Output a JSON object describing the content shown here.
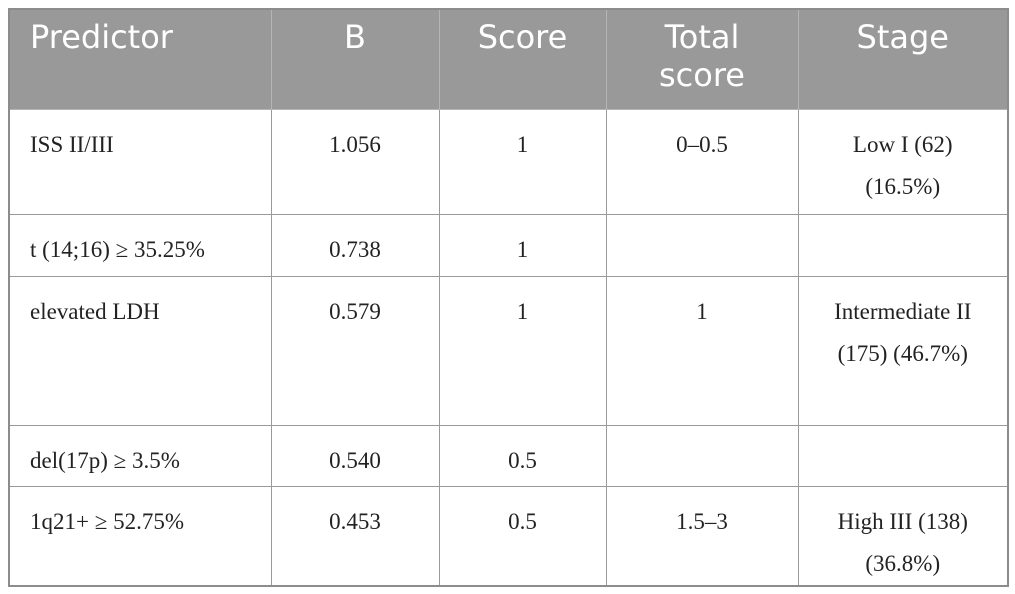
{
  "table": {
    "header": [
      "Predictor",
      "B",
      "Score",
      "Total score",
      "Stage"
    ],
    "rows": [
      [
        "ISS II/III",
        "1.056",
        "1",
        "0–0.5",
        "Low I (62) (16.5%)"
      ],
      [
        "t (14;16) ≥ 35.25%",
        "0.738",
        "1",
        null,
        null
      ],
      [
        "elevated LDH",
        "0.579",
        "1",
        "1",
        "Intermediate II (175) (46.7%)"
      ],
      [
        "del(17p) ≥ 3.5%",
        "0.540",
        "0.5",
        null,
        null
      ],
      [
        "1q21+ ≥ 52.75%",
        "0.453",
        "0.5",
        "1.5–3",
        "High III (138) (36.8%)"
      ]
    ]
  }
}
